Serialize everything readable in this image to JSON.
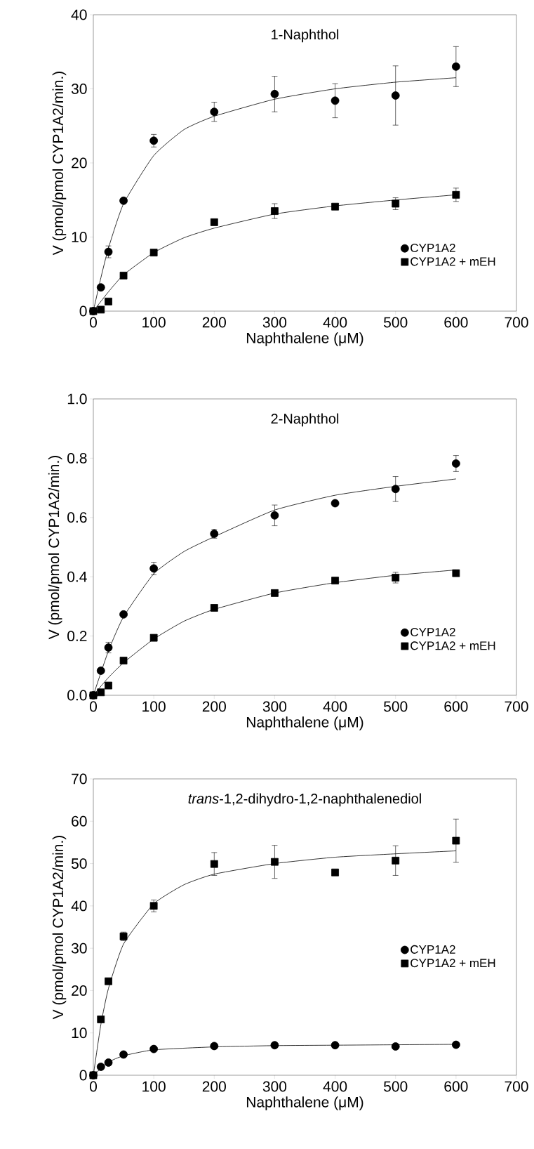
{
  "chart_data": [
    {
      "type": "scatter",
      "title": "1-Naphthol",
      "xlabel": "Naphthalene (μM)",
      "ylabel": "V (pmol/pmol CYP1A2/min.)",
      "xlim": [
        0,
        700
      ],
      "xticks": [
        0,
        100,
        200,
        300,
        400,
        500,
        600,
        700
      ],
      "ylim": [
        0,
        40
      ],
      "yticks": [
        0,
        10,
        20,
        30,
        40
      ],
      "legend": "bottom right",
      "series": [
        {
          "name": "CYP1A2",
          "color": "#000000",
          "marker": "circle",
          "x": [
            0,
            12.5,
            25,
            50,
            100,
            200,
            300,
            400,
            500,
            600
          ],
          "values": [
            0,
            3.2,
            8.0,
            14.9,
            23.0,
            26.9,
            29.3,
            28.4,
            29.1,
            33.0
          ],
          "errors": [
            null,
            null,
            0.8,
            null,
            0.85,
            1.3,
            2.4,
            2.3,
            4.0,
            2.7
          ]
        },
        {
          "name": "CYP1A2 + mEH",
          "color": "#000000",
          "marker": "square",
          "x": [
            0,
            12.5,
            25,
            50,
            100,
            200,
            300,
            400,
            500,
            600
          ],
          "values": [
            0,
            0.2,
            1.3,
            4.8,
            7.9,
            12.0,
            13.5,
            14.1,
            14.5,
            15.7
          ],
          "errors": [
            null,
            null,
            null,
            null,
            null,
            null,
            1.0,
            null,
            0.8,
            0.9
          ]
        },
        {
          "type": "line",
          "color": "#000000",
          "x": [
            0,
            12.5,
            25,
            50,
            100,
            150,
            200,
            300,
            400,
            500,
            600
          ],
          "values": [
            0,
            4.5,
            8.5,
            14.5,
            21.0,
            24.5,
            26.3,
            28.6,
            30.0,
            30.9,
            31.5
          ]
        },
        {
          "type": "line",
          "color": "#000000",
          "x": [
            0,
            25,
            50,
            100,
            150,
            200,
            300,
            400,
            500,
            600
          ],
          "values": [
            0,
            2.6,
            4.9,
            7.9,
            9.9,
            11.2,
            13.1,
            14.2,
            15.0,
            15.7
          ]
        }
      ]
    },
    {
      "type": "scatter",
      "title": "2-Naphthol",
      "xlabel": "Naphthalene (μM)",
      "ylabel": "V (pmol/pmol CYP1A2/min.)",
      "xlim": [
        0,
        700
      ],
      "xticks": [
        0,
        100,
        200,
        300,
        400,
        500,
        600,
        700
      ],
      "ylim": [
        0,
        1
      ],
      "yticks": [
        {
          "value": 0,
          "label": "0.0"
        },
        {
          "value": 0.2,
          "label": "0.2"
        },
        {
          "value": 0.4,
          "label": "0.4"
        },
        {
          "value": 0.6,
          "label": "0.6"
        },
        {
          "value": 0.8,
          "label": "0.8"
        },
        {
          "value": 1,
          "label": "1.0"
        }
      ],
      "legend": "bottom right",
      "series": [
        {
          "name": "CYP1A2",
          "color": "#000000",
          "marker": "circle",
          "x": [
            0,
            12.5,
            25,
            50,
            100,
            200,
            300,
            400,
            500,
            600
          ],
          "values": [
            0,
            0.083,
            0.161,
            0.273,
            0.428,
            0.545,
            0.607,
            0.648,
            0.696,
            0.782
          ],
          "errors": [
            null,
            null,
            0.018,
            null,
            0.021,
            0.015,
            0.035,
            null,
            0.042,
            0.027
          ]
        },
        {
          "name": "CYP1A2 + mEH",
          "color": "#000000",
          "marker": "square",
          "x": [
            0,
            12.5,
            25,
            50,
            100,
            200,
            300,
            400,
            500,
            600
          ],
          "values": [
            0,
            0.01,
            0.033,
            0.117,
            0.194,
            0.295,
            0.345,
            0.387,
            0.397,
            0.412
          ],
          "errors": [
            null,
            null,
            null,
            null,
            null,
            null,
            null,
            null,
            0.018,
            null
          ]
        },
        {
          "type": "line",
          "color": "#000000",
          "x": [
            0,
            25,
            50,
            100,
            150,
            200,
            300,
            400,
            500,
            600
          ],
          "values": [
            0,
            0.15,
            0.265,
            0.41,
            0.485,
            0.535,
            0.625,
            0.675,
            0.705,
            0.73
          ]
        },
        {
          "type": "line",
          "color": "#000000",
          "x": [
            0,
            25,
            50,
            100,
            150,
            200,
            300,
            400,
            500,
            600
          ],
          "values": [
            0,
            0.06,
            0.11,
            0.19,
            0.25,
            0.29,
            0.345,
            0.38,
            0.405,
            0.423
          ]
        }
      ]
    },
    {
      "type": "scatter",
      "title": "*trans*-1,2-dihydro-1,2-naphthalenediol",
      "xlabel": "Naphthalene (μM)",
      "ylabel": "V (pmol/pmol CYP1A2/min.)",
      "xlim": [
        0,
        700
      ],
      "xticks": [
        0,
        100,
        200,
        300,
        400,
        500,
        600,
        700
      ],
      "ylim": [
        0,
        70
      ],
      "yticks": [
        0,
        10,
        20,
        30,
        40,
        50,
        60,
        70
      ],
      "legend": "right",
      "series": [
        {
          "name": "CYP1A2",
          "color": "#000000",
          "marker": "circle",
          "x": [
            0,
            12.5,
            25,
            50,
            100,
            200,
            300,
            400,
            500,
            600
          ],
          "values": [
            0,
            2.0,
            3.0,
            4.9,
            6.2,
            6.9,
            7.1,
            7.1,
            6.8,
            7.2
          ]
        },
        {
          "name": "CYP1A2 + mEH",
          "color": "#000000",
          "marker": "square",
          "x": [
            0,
            12.5,
            25,
            50,
            100,
            200,
            300,
            400,
            500,
            600
          ],
          "values": [
            0,
            13.2,
            22.2,
            32.8,
            40.0,
            49.9,
            50.4,
            47.9,
            50.7,
            55.4
          ],
          "errors": [
            null,
            null,
            null,
            1.0,
            1.4,
            2.7,
            3.9,
            null,
            3.5,
            5.1
          ]
        },
        {
          "type": "line",
          "color": "#000000",
          "x": [
            0,
            12.5,
            25,
            50,
            100,
            150,
            200,
            300,
            400,
            500,
            600
          ],
          "values": [
            0,
            12,
            20.5,
            31,
            40.5,
            45,
            47.5,
            50,
            51.5,
            52.3,
            53
          ]
        },
        {
          "type": "line",
          "color": "#000000",
          "x": [
            0,
            25,
            50,
            100,
            200,
            300,
            400,
            500,
            600
          ],
          "values": [
            0,
            3.1,
            4.6,
            6.0,
            6.7,
            7.0,
            7.1,
            7.2,
            7.3
          ]
        }
      ]
    }
  ]
}
